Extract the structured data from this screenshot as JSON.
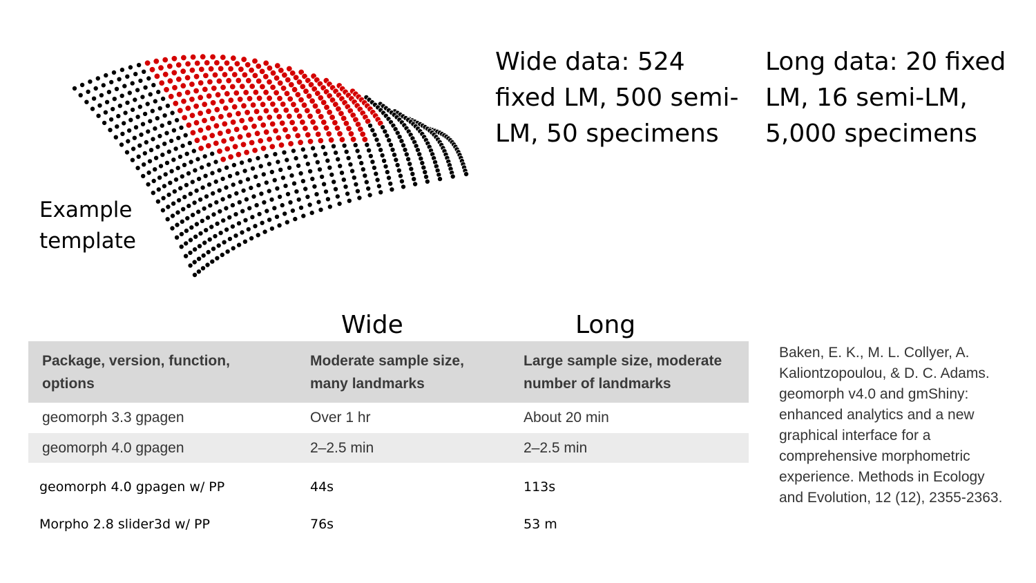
{
  "figure": {
    "label_line1": "Example",
    "label_line2": "template",
    "colors": {
      "fixed": "#000000",
      "semi": "#d40000"
    }
  },
  "wide_data": {
    "line1": "Wide data: 524",
    "line2": "fixed LM, 500 semi-",
    "line3": "LM, 50 specimens"
  },
  "long_data": {
    "line1": "Long data: 20 fixed",
    "line2": "LM, 16 semi-LM,",
    "line3": "5,000 specimens"
  },
  "columns": {
    "wide": "Wide",
    "long": "Long"
  },
  "table": {
    "headers": [
      [
        "Package, version, function,",
        "options"
      ],
      [
        "Moderate sample size,",
        "many landmarks"
      ],
      [
        "Large sample size, moderate",
        "number of landmarks"
      ]
    ],
    "rows": [
      [
        "geomorph 3.3 gpagen",
        "Over 1 hr",
        "About 20 min"
      ],
      [
        "geomorph 4.0 gpagen",
        "2–2.5 min",
        "2–2.5 min"
      ],
      [
        "geomorph 4.0 gpagen w/ PP",
        "44s",
        "113s"
      ],
      [
        "Morpho 2.8 slider3d w/ PP",
        "76s",
        "53 m"
      ]
    ]
  },
  "citation": [
    "Baken, E. K., M. L. Collyer, A.",
    "Kaliontzopoulou, & D. C. Adams.",
    "geomorph v4.0 and gmShiny:",
    "enhanced analytics and a new",
    "graphical interface for a",
    "comprehensive morphometric",
    "experience. Methods in Ecology",
    "and Evolution, 12 (12), 2355-2363."
  ]
}
